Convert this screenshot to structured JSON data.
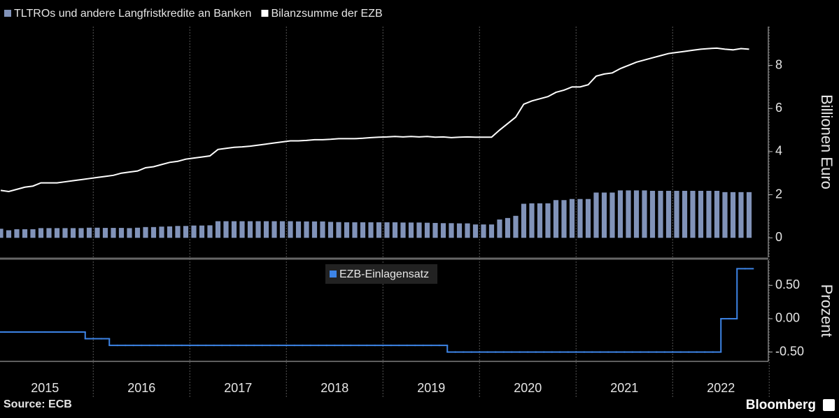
{
  "chart_data": [
    {
      "type": "bar_line",
      "y_label": "Billionen Euro",
      "ylim": [
        -0.9,
        9.8
      ],
      "yticks": [
        0,
        2,
        4,
        6,
        8
      ],
      "series": [
        {
          "name": "TLTROs und andere Langfristkredite an Banken",
          "type": "bar",
          "color": "#8193b9",
          "values": [
            0.42,
            0.35,
            0.4,
            0.4,
            0.4,
            0.45,
            0.45,
            0.45,
            0.45,
            0.45,
            0.45,
            0.47,
            0.47,
            0.46,
            0.46,
            0.46,
            0.45,
            0.47,
            0.5,
            0.5,
            0.52,
            0.53,
            0.55,
            0.55,
            0.57,
            0.57,
            0.58,
            0.77,
            0.77,
            0.77,
            0.77,
            0.77,
            0.77,
            0.77,
            0.77,
            0.77,
            0.77,
            0.76,
            0.76,
            0.76,
            0.76,
            0.74,
            0.73,
            0.72,
            0.72,
            0.72,
            0.72,
            0.72,
            0.72,
            0.72,
            0.71,
            0.71,
            0.71,
            0.7,
            0.69,
            0.68,
            0.68,
            0.67,
            0.67,
            0.62,
            0.62,
            0.62,
            0.85,
            0.92,
            1.02,
            1.58,
            1.6,
            1.6,
            1.6,
            1.75,
            1.75,
            1.8,
            1.8,
            1.8,
            2.1,
            2.1,
            2.1,
            2.2,
            2.2,
            2.2,
            2.2,
            2.18,
            2.18,
            2.18,
            2.18,
            2.18,
            2.18,
            2.18,
            2.18,
            2.18,
            2.12,
            2.12,
            2.12,
            2.12
          ]
        },
        {
          "name": "Bilanzsumme der EZB",
          "type": "line",
          "color": "#ffffff",
          "values": [
            2.2,
            2.15,
            2.25,
            2.35,
            2.4,
            2.55,
            2.55,
            2.55,
            2.6,
            2.65,
            2.7,
            2.75,
            2.8,
            2.85,
            2.9,
            3.0,
            3.05,
            3.1,
            3.25,
            3.3,
            3.4,
            3.5,
            3.55,
            3.65,
            3.7,
            3.75,
            3.8,
            4.1,
            4.15,
            4.2,
            4.22,
            4.25,
            4.3,
            4.35,
            4.4,
            4.45,
            4.5,
            4.5,
            4.52,
            4.55,
            4.55,
            4.57,
            4.6,
            4.6,
            4.6,
            4.62,
            4.65,
            4.67,
            4.68,
            4.7,
            4.68,
            4.7,
            4.68,
            4.7,
            4.67,
            4.68,
            4.65,
            4.67,
            4.68,
            4.67,
            4.67,
            4.67,
            5.0,
            5.3,
            5.6,
            6.2,
            6.35,
            6.45,
            6.55,
            6.75,
            6.85,
            7.0,
            7.0,
            7.1,
            7.5,
            7.6,
            7.65,
            7.85,
            8.0,
            8.15,
            8.25,
            8.35,
            8.45,
            8.55,
            8.6,
            8.65,
            8.7,
            8.75,
            8.78,
            8.8,
            8.75,
            8.72,
            8.78,
            8.75
          ]
        }
      ]
    },
    {
      "type": "step",
      "y_label": "Prozent",
      "ylim": [
        -0.64,
        0.88
      ],
      "yticks": [
        {
          "value": 0.5,
          "label": "0.50"
        },
        {
          "value": 0,
          "label": "0.00"
        },
        {
          "value": -0.5,
          "label": "-0.50"
        }
      ],
      "categories": [
        "2015",
        null,
        null,
        null,
        null,
        null,
        null,
        null,
        null,
        null,
        null,
        null,
        "2016",
        null,
        null,
        null,
        null,
        null,
        null,
        null,
        null,
        null,
        null,
        null,
        "2017",
        null,
        null,
        null,
        null,
        null,
        null,
        null,
        null,
        null,
        null,
        null,
        "2018",
        null,
        null,
        null,
        null,
        null,
        null,
        null,
        null,
        null,
        null,
        null,
        "2019",
        null,
        null,
        null,
        null,
        null,
        null,
        null,
        null,
        null,
        null,
        null,
        "2020",
        null,
        null,
        null,
        null,
        null,
        null,
        null,
        null,
        null,
        null,
        null,
        "2021",
        null,
        null,
        null,
        null,
        null,
        null,
        null,
        null,
        null,
        null,
        null,
        "2022",
        null,
        null,
        null,
        null,
        null,
        null,
        null,
        null,
        null
      ],
      "series": [
        {
          "name": "EZB-Einlagensatz",
          "color": "#3d84e6",
          "values": [
            -0.2,
            -0.2,
            -0.2,
            -0.2,
            -0.2,
            -0.2,
            -0.2,
            -0.2,
            -0.2,
            -0.2,
            -0.2,
            -0.3,
            -0.3,
            -0.3,
            -0.4,
            -0.4,
            -0.4,
            -0.4,
            -0.4,
            -0.4,
            -0.4,
            -0.4,
            -0.4,
            -0.4,
            -0.4,
            -0.4,
            -0.4,
            -0.4,
            -0.4,
            -0.4,
            -0.4,
            -0.4,
            -0.4,
            -0.4,
            -0.4,
            -0.4,
            -0.4,
            -0.4,
            -0.4,
            -0.4,
            -0.4,
            -0.4,
            -0.4,
            -0.4,
            -0.4,
            -0.4,
            -0.4,
            -0.4,
            -0.4,
            -0.4,
            -0.4,
            -0.4,
            -0.4,
            -0.4,
            -0.4,
            -0.4,
            -0.5,
            -0.5,
            -0.5,
            -0.5,
            -0.5,
            -0.5,
            -0.5,
            -0.5,
            -0.5,
            -0.5,
            -0.5,
            -0.5,
            -0.5,
            -0.5,
            -0.5,
            -0.5,
            -0.5,
            -0.5,
            -0.5,
            -0.5,
            -0.5,
            -0.5,
            -0.5,
            -0.5,
            -0.5,
            -0.5,
            -0.5,
            -0.5,
            -0.5,
            -0.5,
            -0.5,
            -0.5,
            -0.5,
            -0.5,
            0,
            0,
            0.75,
            0.75
          ]
        }
      ]
    }
  ],
  "source": "Source: ECB",
  "brand": "Bloomberg"
}
